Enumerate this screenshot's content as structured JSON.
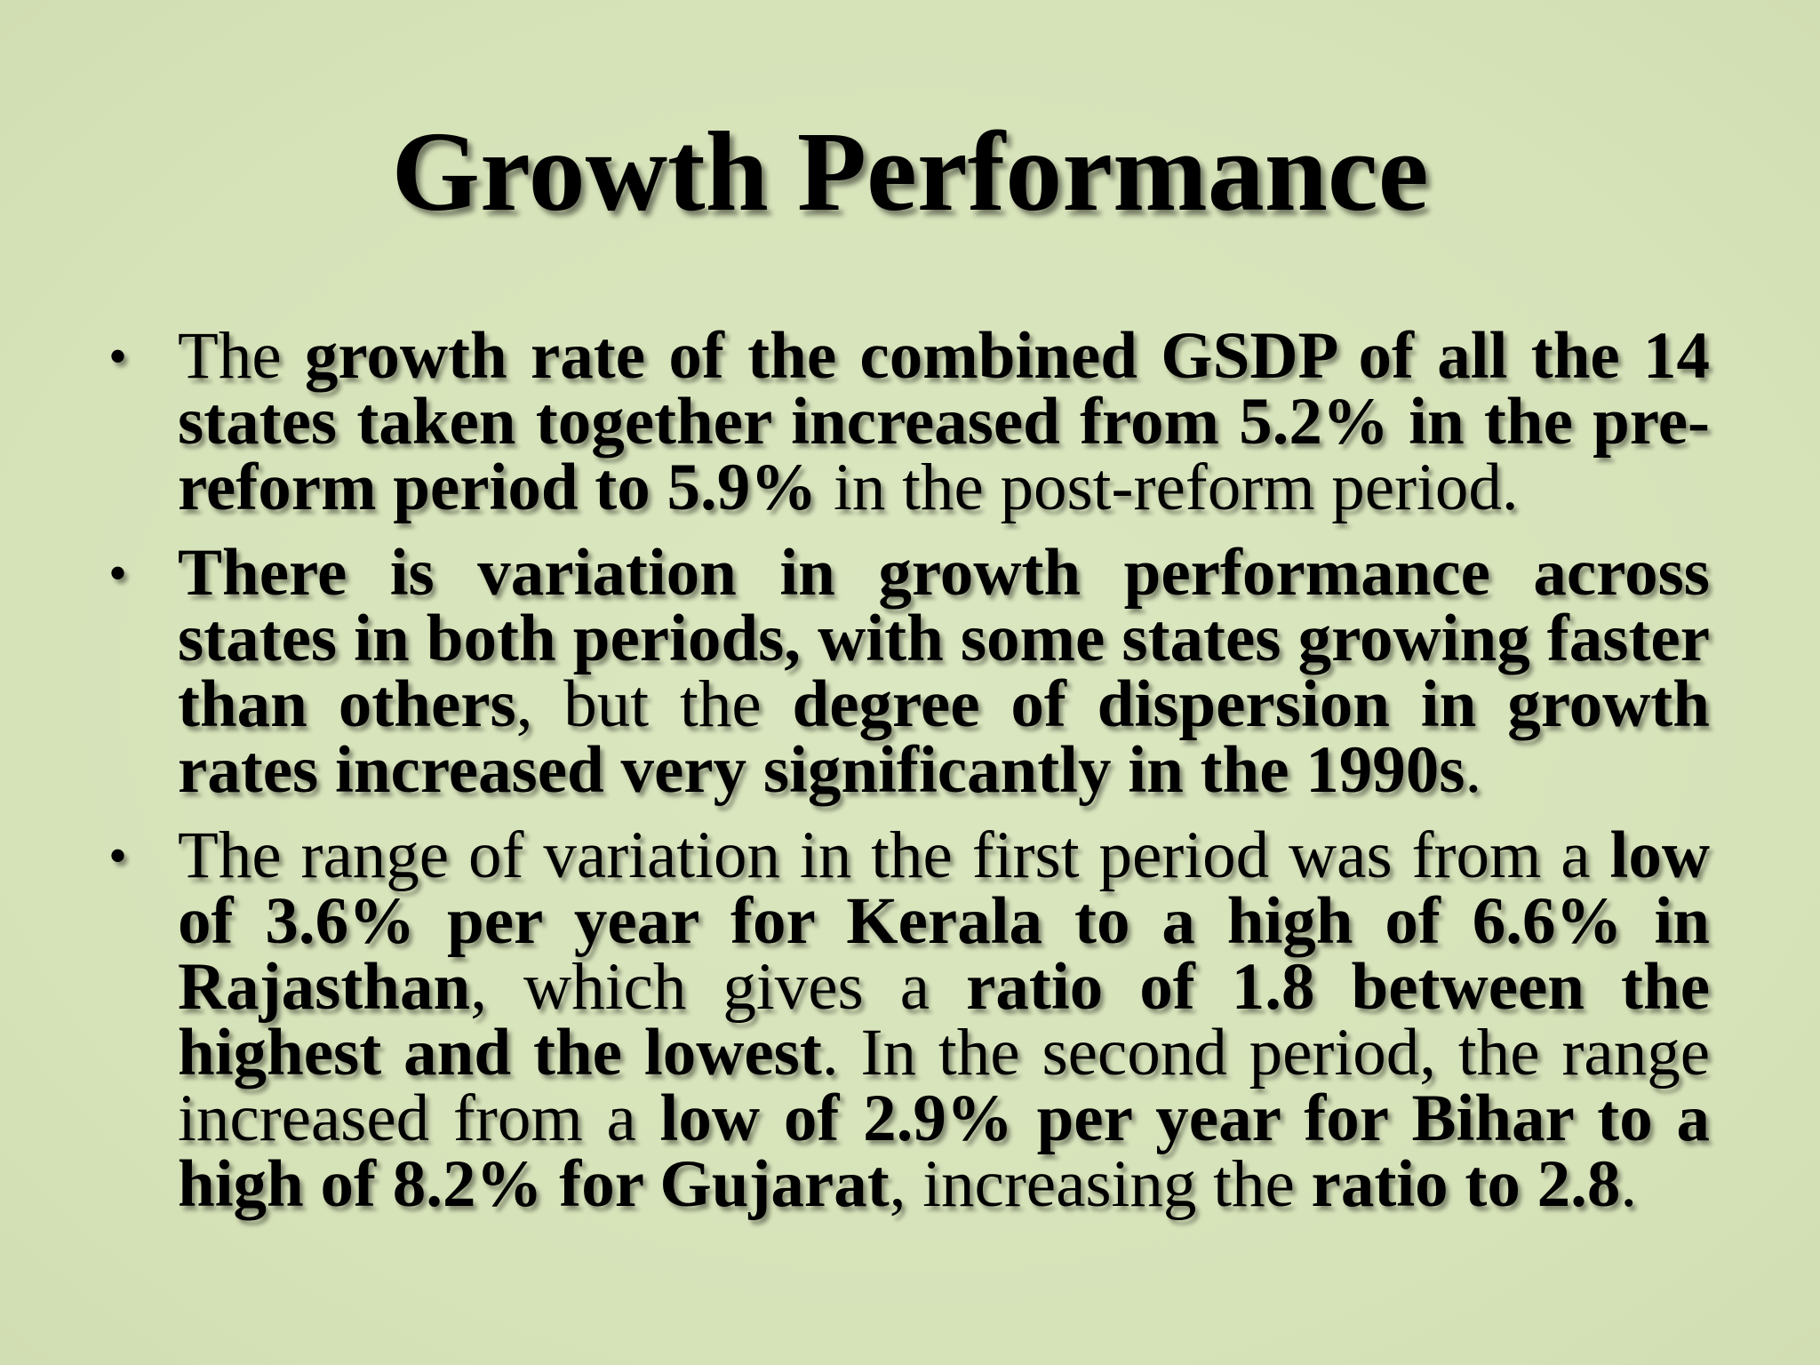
{
  "slide": {
    "title": "Growth Performance",
    "bullet_glyph": "•",
    "bullets": [
      {
        "segments": [
          {
            "text": "The ",
            "bold": false
          },
          {
            "text": "growth rate of the combined GSDP of all the 14 states taken together increased from 5.2% in the pre-reform period to 5.9%",
            "bold": true
          },
          {
            "text": " in the post-reform period.",
            "bold": false
          }
        ]
      },
      {
        "segments": [
          {
            "text": "There is variation in growth performance across states in both periods, with some states growing faster than others",
            "bold": true
          },
          {
            "text": ", but the ",
            "bold": false
          },
          {
            "text": "degree of dispersion in growth rates increased very significantly in the 1990s",
            "bold": true
          },
          {
            "text": ".",
            "bold": false
          }
        ]
      },
      {
        "segments": [
          {
            "text": "The range of variation in the first period was from a ",
            "bold": false
          },
          {
            "text": "low of 3.6% per year for Kerala to a high of 6.6% in Rajasthan",
            "bold": true
          },
          {
            "text": ", which gives a ",
            "bold": false
          },
          {
            "text": "ratio of 1.8 between the highest and the lowest",
            "bold": true
          },
          {
            "text": ". In the second period, the range increased from a ",
            "bold": false
          },
          {
            "text": "low of 2.9% per year for Bihar to a high of 8.2% for Gujarat",
            "bold": true
          },
          {
            "text": ", increasing the ",
            "bold": false
          },
          {
            "text": "ratio to 2.8",
            "bold": true
          },
          {
            "text": ".",
            "bold": false
          }
        ]
      }
    ]
  }
}
